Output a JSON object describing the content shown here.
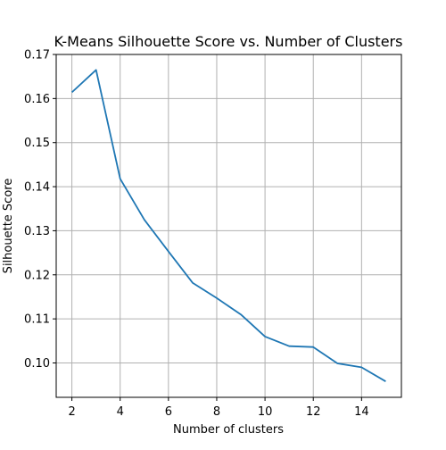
{
  "chart_data": {
    "type": "line",
    "title": "K-Means Silhouette Score vs. Number of Clusters",
    "xlabel": "Number of clusters",
    "ylabel": "Silhouette Score",
    "x": [
      2,
      3,
      4,
      5,
      6,
      7,
      8,
      9,
      10,
      11,
      12,
      13,
      14,
      15
    ],
    "series": [
      {
        "values": [
          0.1614,
          0.1665,
          0.1418,
          0.1325,
          0.1253,
          0.1182,
          0.1147,
          0.111,
          0.106,
          0.1038,
          0.1036,
          0.0999,
          0.099,
          0.0958
        ],
        "color": "#1f77b4"
      }
    ],
    "xlim": [
      1.35,
      15.65
    ],
    "ylim": [
      0.0922,
      0.17
    ],
    "xticks": [
      2,
      4,
      6,
      8,
      10,
      12,
      14
    ],
    "yticks": [
      0.1,
      0.11,
      0.12,
      0.13,
      0.14,
      0.15,
      0.16,
      0.17
    ],
    "xtick_labels": [
      "2",
      "4",
      "6",
      "8",
      "10",
      "12",
      "14"
    ],
    "ytick_labels": [
      "0.10",
      "0.11",
      "0.12",
      "0.13",
      "0.14",
      "0.15",
      "0.16",
      "0.17"
    ],
    "grid": true,
    "legend": "none"
  }
}
